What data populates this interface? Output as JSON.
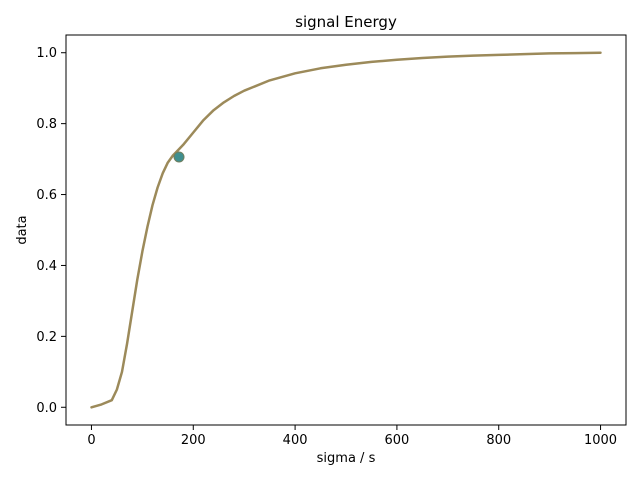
{
  "chart_data": {
    "type": "line",
    "title": "signal Energy",
    "xlabel": "sigma / s",
    "ylabel": "data",
    "xlim": [
      -50,
      1050
    ],
    "ylim": [
      -0.05,
      1.05
    ],
    "xticks": [
      0,
      200,
      400,
      600,
      800,
      1000
    ],
    "yticks": [
      0.0,
      0.2,
      0.4,
      0.6,
      0.8,
      1.0
    ],
    "xtick_labels": [
      "0",
      "200",
      "400",
      "600",
      "800",
      "1000"
    ],
    "ytick_labels": [
      "0.0",
      "0.2",
      "0.4",
      "0.6",
      "0.8",
      "1.0"
    ],
    "grid": false,
    "series": [
      {
        "color": "#9c8a5a",
        "x": [
          0,
          20,
          40,
          50,
          60,
          70,
          80,
          90,
          100,
          110,
          120,
          130,
          140,
          150,
          160,
          170,
          180,
          200,
          220,
          240,
          260,
          280,
          300,
          350,
          400,
          450,
          500,
          550,
          600,
          650,
          700,
          750,
          800,
          850,
          900,
          950,
          1000
        ],
        "y": [
          0.0,
          0.008,
          0.02,
          0.05,
          0.1,
          0.18,
          0.27,
          0.36,
          0.44,
          0.51,
          0.57,
          0.62,
          0.66,
          0.69,
          0.71,
          0.725,
          0.74,
          0.775,
          0.81,
          0.838,
          0.86,
          0.878,
          0.893,
          0.922,
          0.942,
          0.956,
          0.966,
          0.974,
          0.98,
          0.985,
          0.989,
          0.992,
          0.994,
          0.996,
          0.998,
          0.999,
          1.0
        ]
      }
    ],
    "marker": {
      "x": 172,
      "y": 0.706,
      "color": "#3f8f8f",
      "edge_color": "#6f7f5f"
    }
  }
}
